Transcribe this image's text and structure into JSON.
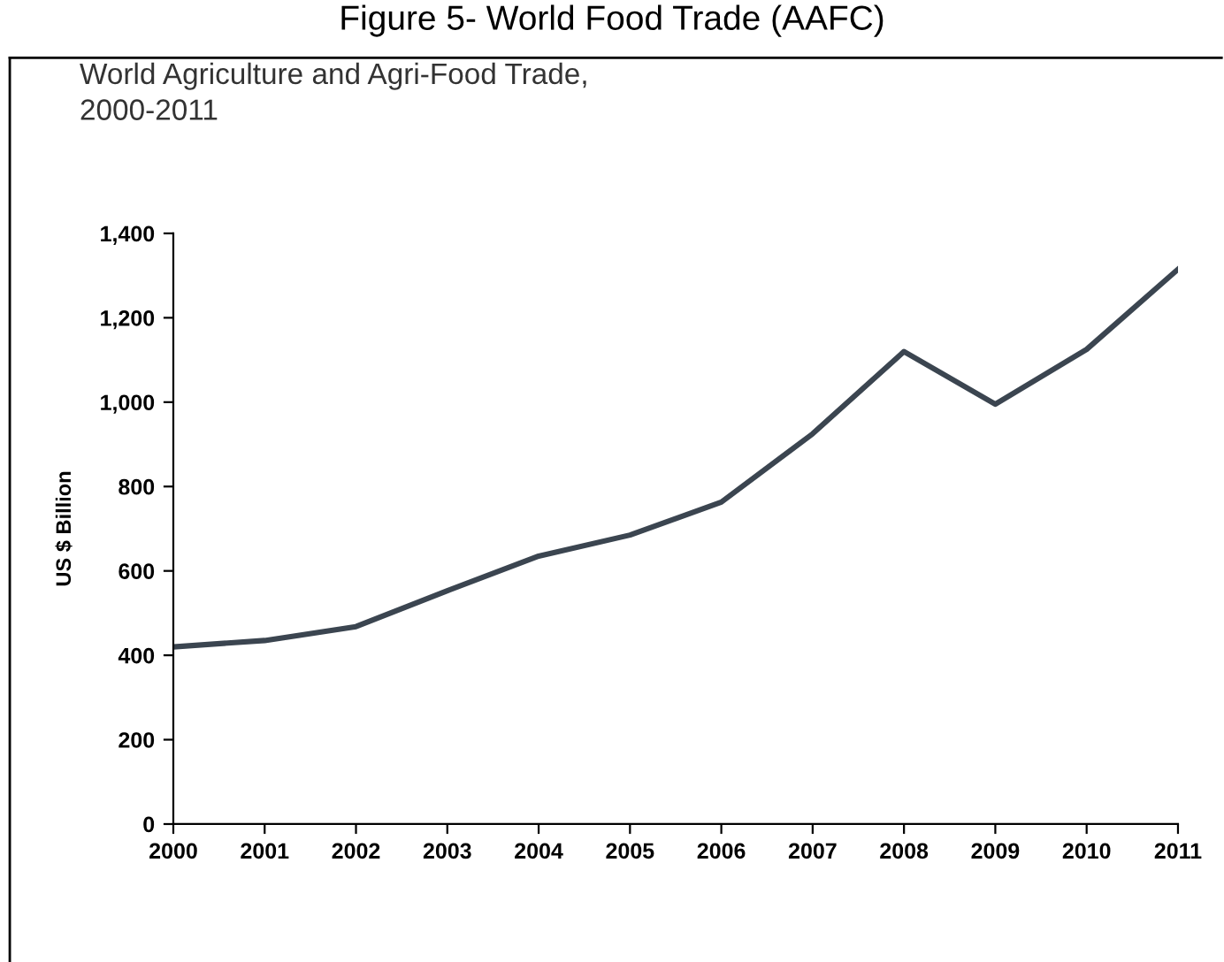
{
  "chart_data": {
    "type": "line",
    "title": "Figure 5- World Food Trade (AAFC)",
    "subtitle": "World Agriculture and Agri-Food Trade,\n2000-2011",
    "ylabel": "US $ Billion",
    "x": [
      2000,
      2001,
      2002,
      2003,
      2004,
      2005,
      2006,
      2007,
      2008,
      2009,
      2010,
      2011
    ],
    "series": [
      {
        "color": "#3b4550",
        "values": [
          420,
          435,
          468,
          553,
          635,
          685,
          763,
          925,
          1120,
          995,
          1125,
          1315
        ]
      }
    ],
    "xlim": [
      2000,
      2011
    ],
    "xticks": [
      2000,
      2001,
      2002,
      2003,
      2004,
      2005,
      2006,
      2007,
      2008,
      2009,
      2010,
      2011
    ],
    "ylim": [
      0,
      1400
    ],
    "yticks": [
      {
        "value": 0,
        "label": "0"
      },
      {
        "value": 200,
        "label": "200"
      },
      {
        "value": 400,
        "label": "400"
      },
      {
        "value": 600,
        "label": "600"
      },
      {
        "value": 800,
        "label": "800"
      },
      {
        "value": 1000,
        "label": "1,000"
      },
      {
        "value": 1200,
        "label": "1,200"
      },
      {
        "value": 1400,
        "label": "1,400"
      }
    ],
    "grid": false,
    "legend": false,
    "marker": "none",
    "line_style": "solid"
  }
}
